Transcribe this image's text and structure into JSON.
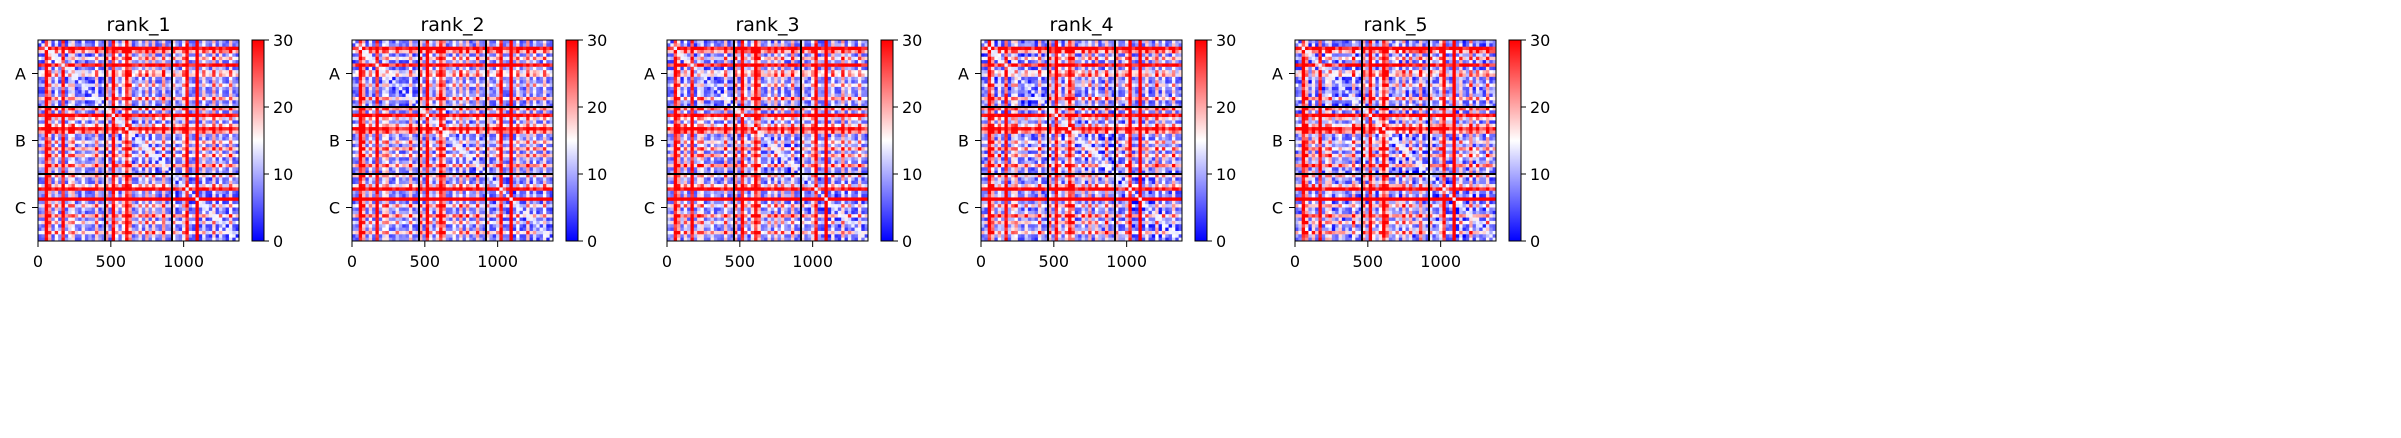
{
  "chart_data": [
    {
      "type": "heatmap",
      "title": "rank_1",
      "xticks": [
        0,
        500,
        1000
      ],
      "ylabels": [
        "A",
        "B",
        "C"
      ],
      "xlim": [
        0,
        1380
      ],
      "chain_boundaries": [
        460,
        920
      ],
      "colorbar": {
        "min": 0,
        "max": 30,
        "ticks": [
          0,
          10,
          20,
          30
        ],
        "colormap": "bwr"
      },
      "stripes": [
        60,
        75,
        120,
        180,
        215,
        250,
        320,
        400,
        480,
        520,
        540,
        580,
        610,
        640,
        700,
        750,
        800,
        860,
        940,
        990,
        1030,
        1085,
        1100,
        1130,
        1200,
        1260,
        1320
      ],
      "stripe_strength": [
        1.0,
        0.6,
        0.4,
        0.95,
        0.35,
        0.45,
        0.3,
        0.5,
        0.55,
        1.0,
        0.3,
        0.4,
        0.95,
        0.6,
        0.35,
        0.5,
        0.45,
        0.55,
        0.4,
        0.35,
        1.0,
        0.9,
        0.5,
        0.4,
        0.55,
        0.35,
        0.45
      ],
      "contrast": 1.0
    },
    {
      "type": "heatmap",
      "title": "rank_2",
      "xticks": [
        0,
        500,
        1000
      ],
      "ylabels": [
        "A",
        "B",
        "C"
      ],
      "xlim": [
        0,
        1380
      ],
      "chain_boundaries": [
        460,
        920
      ],
      "colorbar": {
        "min": 0,
        "max": 30,
        "ticks": [
          0,
          10,
          20,
          30
        ],
        "colormap": "bwr"
      },
      "stripes": [
        60,
        75,
        120,
        180,
        215,
        250,
        320,
        400,
        480,
        520,
        540,
        580,
        610,
        640,
        700,
        750,
        800,
        860,
        940,
        990,
        1030,
        1085,
        1100,
        1130,
        1200,
        1260,
        1320
      ],
      "stripe_strength": [
        1.0,
        0.6,
        0.4,
        0.95,
        0.35,
        0.45,
        0.3,
        0.5,
        0.55,
        1.0,
        0.3,
        0.4,
        0.95,
        0.6,
        0.35,
        0.5,
        0.45,
        0.55,
        0.4,
        0.35,
        1.0,
        0.9,
        0.5,
        0.4,
        0.55,
        0.35,
        0.45
      ],
      "contrast": 1.05
    },
    {
      "type": "heatmap",
      "title": "rank_3",
      "xticks": [
        0,
        500,
        1000
      ],
      "ylabels": [
        "A",
        "B",
        "C"
      ],
      "xlim": [
        0,
        1380
      ],
      "chain_boundaries": [
        460,
        920
      ],
      "colorbar": {
        "min": 0,
        "max": 30,
        "ticks": [
          0,
          10,
          20,
          30
        ],
        "colormap": "bwr"
      },
      "stripes": [
        60,
        75,
        120,
        180,
        215,
        250,
        320,
        400,
        480,
        520,
        540,
        580,
        610,
        640,
        700,
        750,
        800,
        860,
        940,
        990,
        1030,
        1085,
        1100,
        1130,
        1200,
        1260,
        1320
      ],
      "stripe_strength": [
        1.0,
        0.6,
        0.4,
        0.95,
        0.35,
        0.45,
        0.3,
        0.5,
        0.55,
        1.0,
        0.3,
        0.4,
        0.95,
        0.6,
        0.35,
        0.5,
        0.45,
        0.55,
        0.4,
        0.35,
        1.0,
        0.9,
        0.5,
        0.4,
        0.55,
        0.35,
        0.45
      ],
      "contrast": 1.1
    },
    {
      "type": "heatmap",
      "title": "rank_4",
      "xticks": [
        0,
        500,
        1000
      ],
      "ylabels": [
        "A",
        "B",
        "C"
      ],
      "xlim": [
        0,
        1380
      ],
      "chain_boundaries": [
        460,
        920
      ],
      "colorbar": {
        "min": 0,
        "max": 30,
        "ticks": [
          0,
          10,
          20,
          30
        ],
        "colormap": "bwr"
      },
      "stripes": [
        60,
        75,
        120,
        180,
        215,
        250,
        320,
        400,
        480,
        520,
        540,
        580,
        610,
        640,
        700,
        750,
        800,
        860,
        940,
        990,
        1030,
        1085,
        1100,
        1130,
        1200,
        1260,
        1320
      ],
      "stripe_strength": [
        1.0,
        0.6,
        0.4,
        0.95,
        0.35,
        0.45,
        0.3,
        0.5,
        0.55,
        1.0,
        0.3,
        0.4,
        0.95,
        0.6,
        0.35,
        0.5,
        0.45,
        0.55,
        0.4,
        0.35,
        1.0,
        0.9,
        0.5,
        0.4,
        0.55,
        0.35,
        0.45
      ],
      "contrast": 1.3
    },
    {
      "type": "heatmap",
      "title": "rank_5",
      "xticks": [
        0,
        500,
        1000
      ],
      "ylabels": [
        "A",
        "B",
        "C"
      ],
      "xlim": [
        0,
        1380
      ],
      "chain_boundaries": [
        460,
        920
      ],
      "colorbar": {
        "min": 0,
        "max": 30,
        "ticks": [
          0,
          10,
          20,
          30
        ],
        "colormap": "bwr"
      },
      "stripes": [
        60,
        75,
        120,
        180,
        215,
        250,
        320,
        400,
        480,
        520,
        540,
        580,
        610,
        640,
        700,
        750,
        800,
        860,
        940,
        990,
        1030,
        1085,
        1100,
        1130,
        1200,
        1260,
        1320
      ],
      "stripe_strength": [
        1.0,
        0.6,
        0.4,
        0.95,
        0.35,
        0.45,
        0.3,
        0.5,
        0.55,
        1.0,
        0.3,
        0.4,
        0.95,
        0.6,
        0.35,
        0.5,
        0.45,
        0.55,
        0.4,
        0.35,
        1.0,
        0.9,
        0.5,
        0.4,
        0.55,
        0.35,
        0.45
      ],
      "contrast": 1.5
    }
  ]
}
